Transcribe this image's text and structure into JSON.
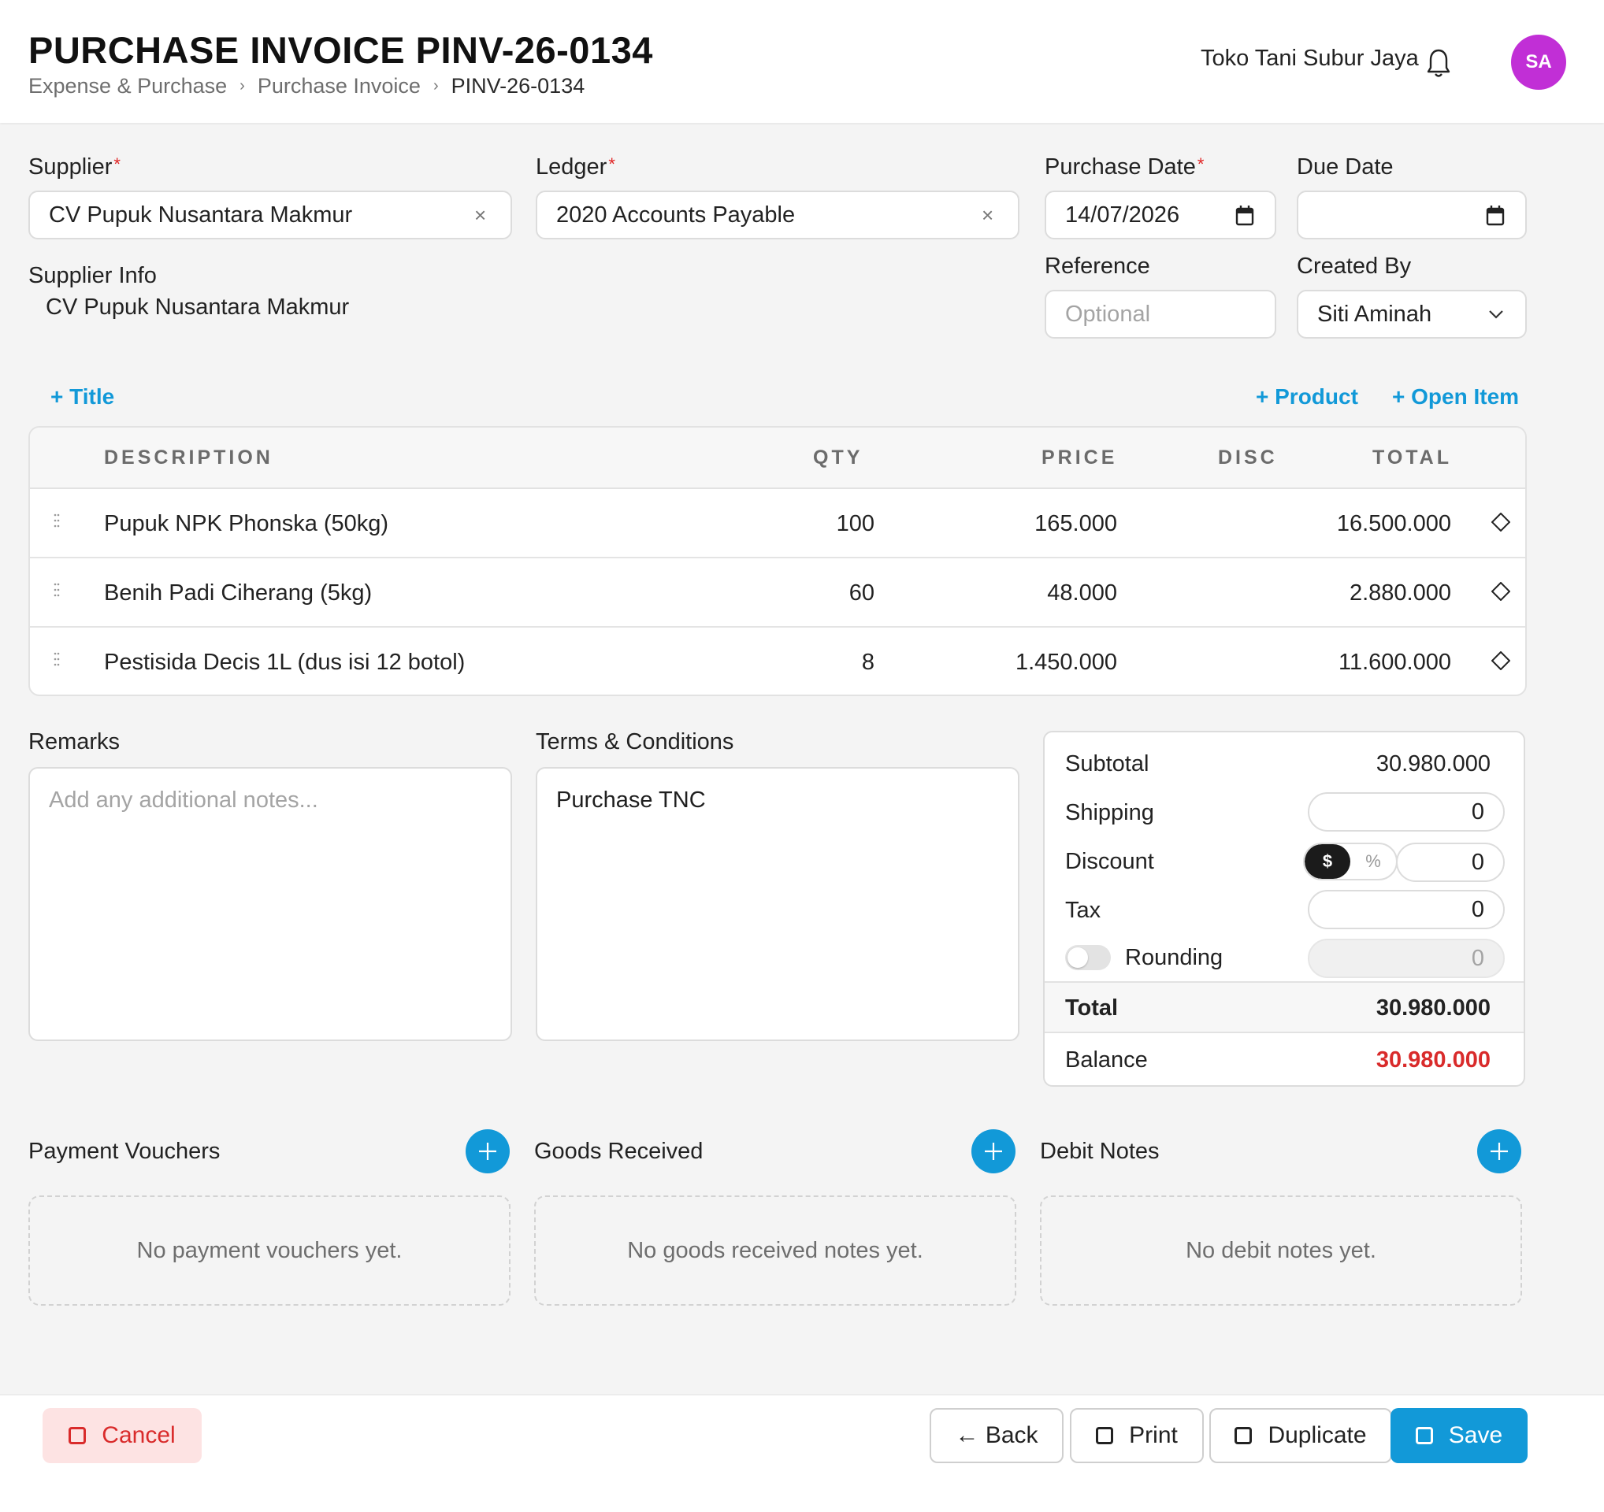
{
  "header": {
    "title": "PURCHASE INVOICE PINV-26-0134",
    "breadcrumb": [
      "Expense & Purchase",
      "Purchase Invoice",
      "PINV-26-0134"
    ],
    "breadcrumb_sep": "›",
    "company": "Toko Tani Subur Jaya",
    "avatar_initials": "SA",
    "avatar_color": "#c12fd6"
  },
  "form": {
    "supplier_label": "Supplier",
    "supplier_value": "CV Pupuk Nusantara Makmur",
    "ledger_label": "Ledger",
    "ledger_value": "2020 Accounts Payable",
    "purchase_date_label": "Purchase Date",
    "purchase_date_value": "14/07/2026",
    "due_date_label": "Due Date",
    "due_date_value": "",
    "reference_label": "Reference",
    "reference_placeholder": "Optional",
    "created_by_label": "Created By",
    "created_by_value": "Siti Aminah",
    "supplier_info_label": "Supplier Info",
    "supplier_info_value": "CV Pupuk Nusantara Makmur",
    "required_mark": "*",
    "clear_glyph": "×"
  },
  "actions": {
    "add_title": "+ Title",
    "add_product": "+ Product",
    "add_open_item": "+ Open Item"
  },
  "items_table": {
    "columns": [
      "DESCRIPTION",
      "QTY",
      "PRICE",
      "DISC",
      "TOTAL"
    ],
    "rows": [
      {
        "description": "Pupuk NPK Phonska (50kg)",
        "qty": "100",
        "price": "165.000",
        "disc": "",
        "total": "16.500.000"
      },
      {
        "description": "Benih Padi Ciherang (5kg)",
        "qty": "60",
        "price": "48.000",
        "disc": "",
        "total": "2.880.000"
      },
      {
        "description": "Pestisida Decis 1L (dus isi 12 botol)",
        "qty": "8",
        "price": "1.450.000",
        "disc": "",
        "total": "11.600.000"
      }
    ]
  },
  "remarks": {
    "label": "Remarks",
    "placeholder": "Add any additional notes...",
    "value": ""
  },
  "terms": {
    "label": "Terms & Conditions",
    "value": "Purchase TNC"
  },
  "summary": {
    "subtotal_label": "Subtotal",
    "subtotal_value": "30.980.000",
    "shipping_label": "Shipping",
    "shipping_value": "0",
    "discount_label": "Discount",
    "discount_mode_amount": "$",
    "discount_mode_percent": "%",
    "discount_value": "0",
    "tax_label": "Tax",
    "tax_value": "0",
    "rounding_label": "Rounding",
    "rounding_value": "0",
    "rounding_enabled": false,
    "total_label": "Total",
    "total_value": "30.980.000",
    "balance_label": "Balance",
    "balance_value": "30.980.000",
    "balance_color": "#d92b2b"
  },
  "sections": [
    {
      "title": "Payment Vouchers",
      "empty_text": "No payment vouchers yet."
    },
    {
      "title": "Goods Received",
      "empty_text": "No goods received notes yet."
    },
    {
      "title": "Debit Notes",
      "empty_text": "No debit notes yet."
    }
  ],
  "footer": {
    "cancel_label": "Cancel",
    "back_label": "← Back",
    "print_label": "Print",
    "duplicate_label": "Duplicate",
    "save_label": "Save"
  },
  "colors": {
    "accent": "#1299d8",
    "danger": "#d92b2b",
    "cancel_bg": "#fde3e3"
  },
  "icons": {
    "bell": "bell-icon",
    "calendar": "calendar-icon",
    "clear": "close-icon",
    "chevron": "chevron-down-icon",
    "drag": "drag-handle-icon",
    "row_action": "diamond-icon",
    "add": "plus-icon",
    "checkbox": "square-icon"
  }
}
